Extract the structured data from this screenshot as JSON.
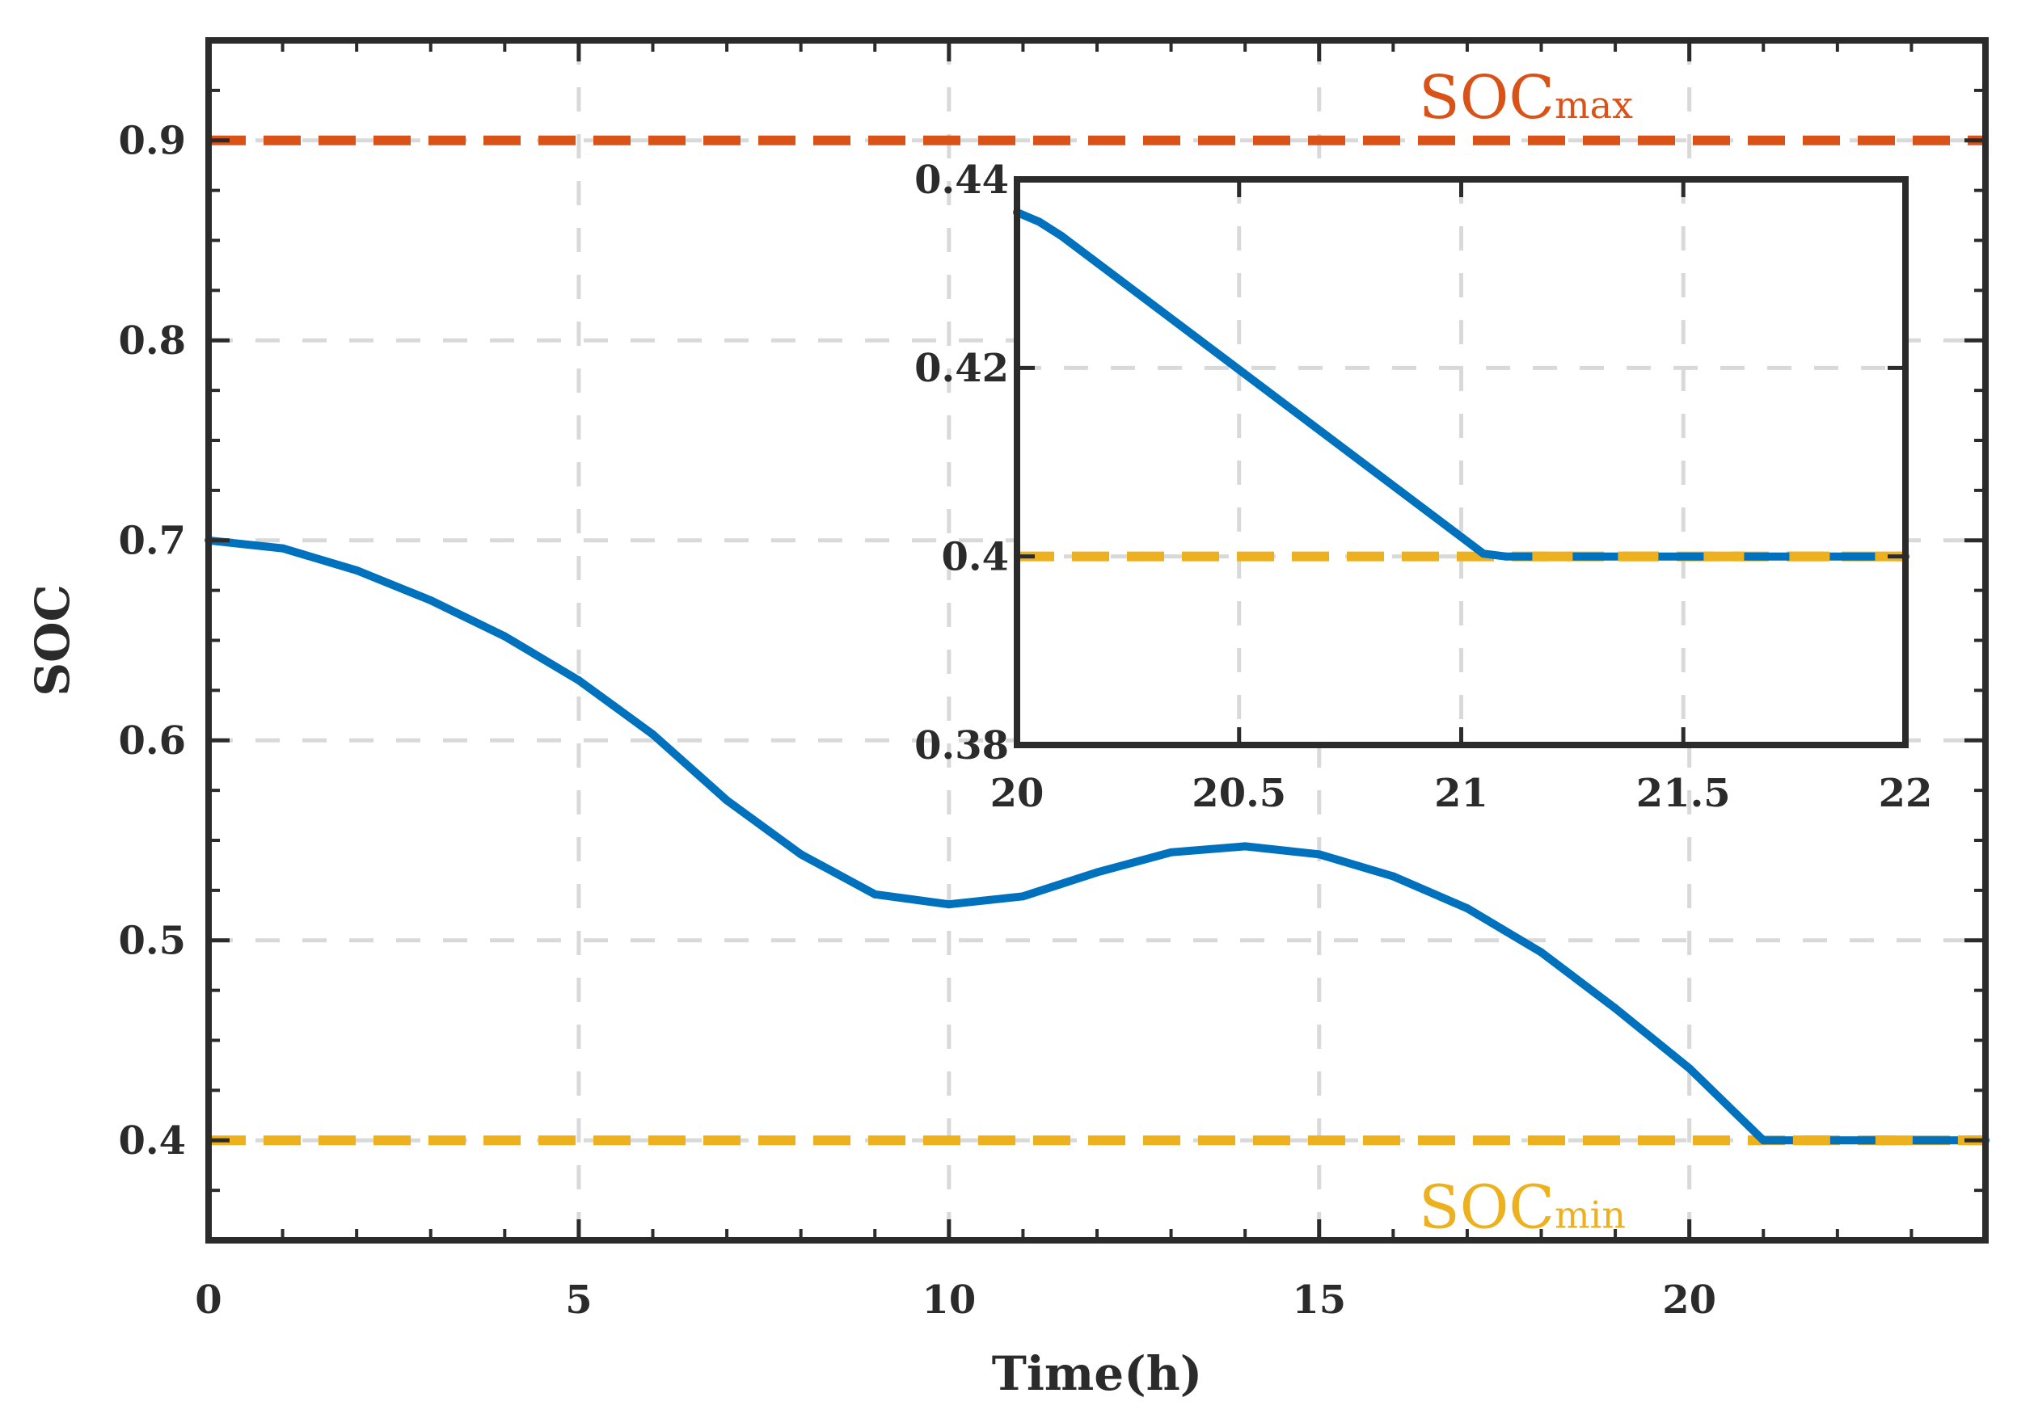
{
  "chart_data": [
    {
      "type": "line",
      "name": "main",
      "xlabel": "Time(h)",
      "ylabel": "SOC",
      "xlim": [
        0,
        24
      ],
      "ylim": [
        0.35,
        0.95
      ],
      "xticks": [
        0,
        5,
        10,
        15,
        20
      ],
      "yticks": [
        0.4,
        0.5,
        0.6,
        0.7,
        0.8,
        0.9
      ],
      "grid": true,
      "series": [
        {
          "name": "SOC",
          "color": "#0072BD",
          "x": [
            0,
            1,
            2,
            3,
            4,
            5,
            6,
            7,
            8,
            9,
            10,
            11,
            12,
            13,
            14,
            15,
            16,
            17,
            18,
            19,
            20,
            21,
            22,
            23,
            24
          ],
          "y": [
            0.7,
            0.696,
            0.685,
            0.67,
            0.652,
            0.63,
            0.603,
            0.57,
            0.543,
            0.523,
            0.518,
            0.522,
            0.534,
            0.544,
            0.547,
            0.543,
            0.532,
            0.516,
            0.494,
            0.466,
            0.436,
            0.4,
            0.4,
            0.4,
            0.4
          ]
        }
      ],
      "reference_lines": [
        {
          "name": "SOCmax",
          "y": 0.9,
          "color": "#D95319",
          "label_main": "SOC",
          "label_sub": "max"
        },
        {
          "name": "SOCmin",
          "y": 0.4,
          "color": "#EDB120",
          "label_main": "SOC",
          "label_sub": "min"
        }
      ]
    },
    {
      "type": "line",
      "name": "inset",
      "xlim": [
        20,
        22
      ],
      "ylim": [
        0.38,
        0.44
      ],
      "xticks": [
        20,
        20.5,
        21,
        21.5,
        22
      ],
      "yticks": [
        0.38,
        0.4,
        0.42,
        0.44
      ],
      "xtick_labels": [
        "20",
        "20.5",
        "21",
        "21.5",
        "22"
      ],
      "ytick_labels": [
        "0.38",
        "0.4",
        "0.42",
        "0.44"
      ],
      "grid": true,
      "series": [
        {
          "name": "SOC",
          "color": "#0072BD",
          "x": [
            20,
            20.05,
            20.1,
            21.05,
            21.1,
            22
          ],
          "y": [
            0.4365,
            0.4355,
            0.434,
            0.4003,
            0.4,
            0.4
          ]
        }
      ],
      "reference_lines": [
        {
          "name": "SOCmin",
          "y": 0.4,
          "color": "#EDB120"
        }
      ]
    }
  ]
}
